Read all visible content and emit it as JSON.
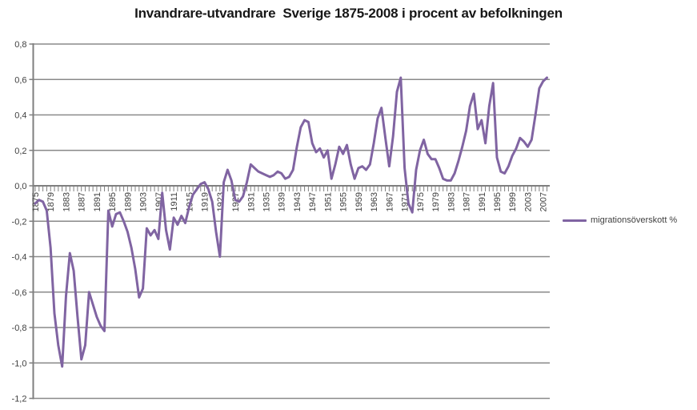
{
  "title": "Invandrare-utvandrare  Sverige 1875-2008 i procent av befolkningen",
  "legend": {
    "label": "migrationsöverskott %"
  },
  "colors": {
    "series": "#8064A2",
    "grid": "#8a8a8a",
    "axis": "#7f7f7f",
    "tick_text": "#3f3f3f",
    "title_text": "#171717",
    "background": "#ffffff"
  },
  "chart_data": {
    "type": "line",
    "title": "Invandrare-utvandrare  Sverige 1875-2008 i procent av befolkningen",
    "xlabel": "",
    "ylabel": "",
    "xlim": [
      1875,
      2008
    ],
    "ylim": [
      -1.2,
      0.8
    ],
    "grid": "horizontal",
    "legend_position": "right",
    "y_ticks": {
      "values": [
        0.8,
        0.6,
        0.4,
        0.2,
        0.0,
        -0.2,
        -0.4,
        -0.6,
        -0.8,
        -1.0,
        -1.2
      ],
      "labels": [
        "0,8",
        "0,6",
        "0,4",
        "0,2",
        "0,0",
        "-0,2",
        "-0,4",
        "-0,6",
        "-0,8",
        "-1,0",
        "-1,2"
      ]
    },
    "x_tick_years": [
      1875,
      1879,
      1883,
      1887,
      1891,
      1895,
      1899,
      1903,
      1907,
      1911,
      1915,
      1919,
      1923,
      1927,
      1931,
      1935,
      1939,
      1943,
      1947,
      1951,
      1955,
      1959,
      1963,
      1967,
      1971,
      1975,
      1979,
      1983,
      1987,
      1991,
      1995,
      1999,
      2003,
      2007
    ],
    "series": [
      {
        "name": "migrationsöverskott %",
        "color": "#8064A2",
        "x_start": 1875,
        "x_step": 1,
        "values": [
          -0.1,
          -0.08,
          -0.09,
          -0.14,
          -0.35,
          -0.72,
          -0.9,
          -1.02,
          -0.62,
          -0.38,
          -0.48,
          -0.74,
          -0.98,
          -0.9,
          -0.6,
          -0.67,
          -0.74,
          -0.79,
          -0.82,
          -0.14,
          -0.23,
          -0.16,
          -0.15,
          -0.2,
          -0.26,
          -0.35,
          -0.47,
          -0.63,
          -0.58,
          -0.24,
          -0.28,
          -0.25,
          -0.3,
          -0.04,
          -0.25,
          -0.36,
          -0.18,
          -0.22,
          -0.17,
          -0.21,
          -0.12,
          -0.05,
          -0.02,
          0.01,
          0.02,
          -0.02,
          -0.09,
          -0.26,
          -0.4,
          0.02,
          0.09,
          0.03,
          -0.08,
          -0.09,
          -0.06,
          0.02,
          0.12,
          0.1,
          0.08,
          0.07,
          0.06,
          0.05,
          0.06,
          0.08,
          0.07,
          0.04,
          0.05,
          0.09,
          0.22,
          0.33,
          0.37,
          0.36,
          0.24,
          0.19,
          0.21,
          0.16,
          0.2,
          0.04,
          0.12,
          0.22,
          0.18,
          0.23,
          0.12,
          0.04,
          0.1,
          0.11,
          0.09,
          0.12,
          0.24,
          0.38,
          0.44,
          0.27,
          0.11,
          0.28,
          0.53,
          0.61,
          0.1,
          -0.1,
          -0.15,
          0.09,
          0.2,
          0.26,
          0.18,
          0.15,
          0.15,
          0.1,
          0.04,
          0.03,
          0.03,
          0.07,
          0.14,
          0.22,
          0.31,
          0.45,
          0.52,
          0.32,
          0.37,
          0.24,
          0.45,
          0.58,
          0.16,
          0.08,
          0.07,
          0.11,
          0.17,
          0.21,
          0.27,
          0.25,
          0.22,
          0.26,
          0.4,
          0.55,
          0.59,
          0.61
        ]
      }
    ]
  }
}
